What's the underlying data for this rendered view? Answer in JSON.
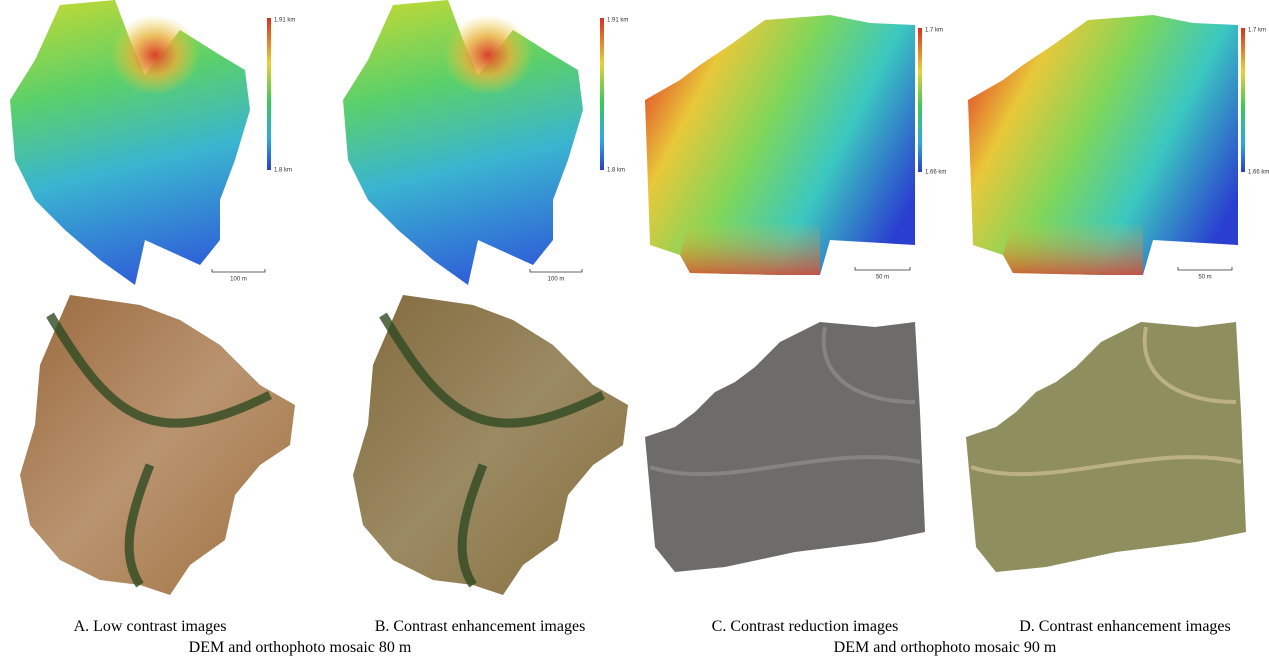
{
  "panels": [
    {
      "caption": "A. Low contrast images",
      "dem": {
        "max_label": "1.91 km",
        "min_label": "1.8 km",
        "scale_label": "100 m"
      }
    },
    {
      "caption": "B. Contrast enhancement images",
      "dem": {
        "max_label": "1.91 km",
        "min_label": "1.8 km",
        "scale_label": "100 m"
      }
    },
    {
      "caption": "C. Contrast reduction images",
      "dem": {
        "max_label": "1.7 km",
        "min_label": "1.66 km",
        "scale_label": "50 m"
      }
    },
    {
      "caption": "D. Contrast enhancement images",
      "dem": {
        "max_label": "1.7 km",
        "min_label": "1.66 km",
        "scale_label": "50 m"
      }
    }
  ],
  "groups": [
    {
      "caption": "DEM and orthophoto mosaic 80 m"
    },
    {
      "caption": "DEM and orthophoto mosaic 90 m"
    }
  ]
}
